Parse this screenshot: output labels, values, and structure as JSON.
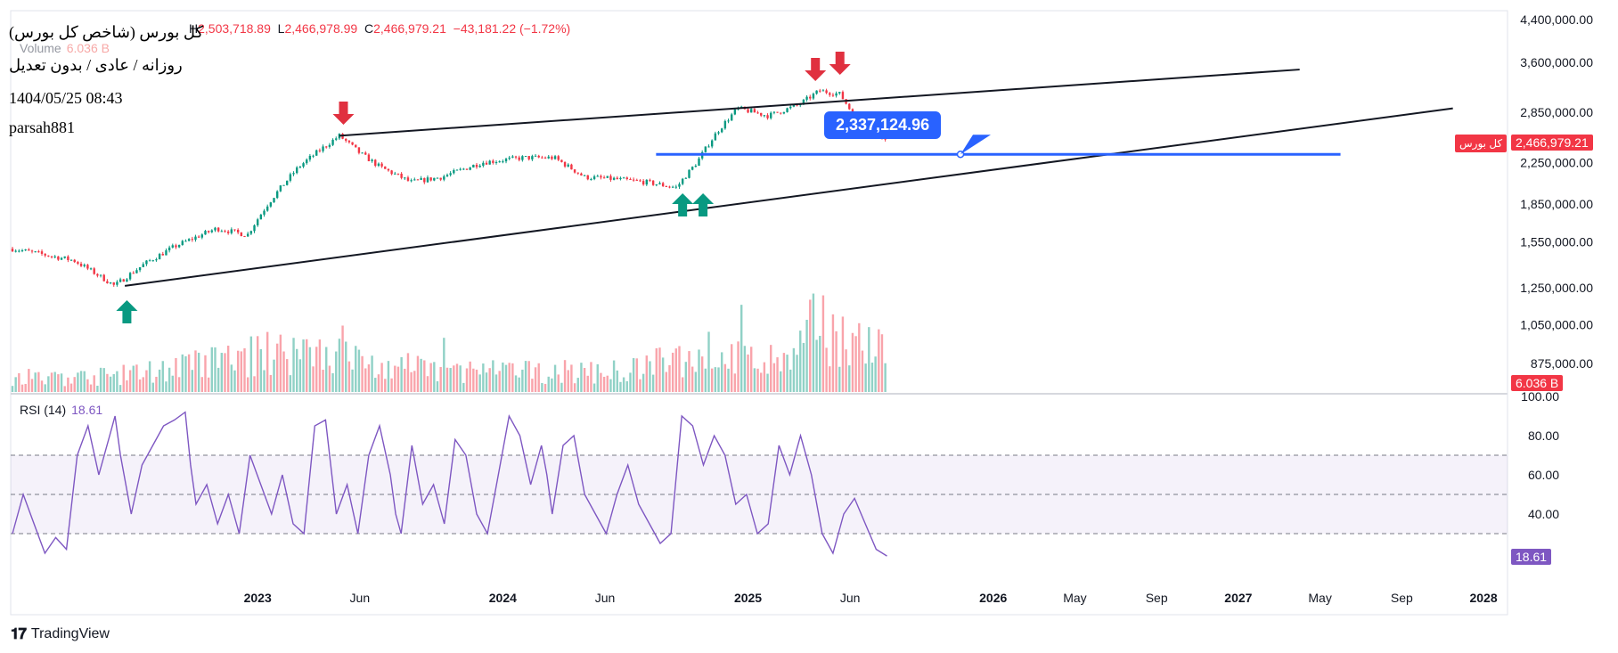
{
  "header": {
    "title": "کل بورس (شاخص کل بورس)",
    "timeframe": "روزانه / عادی / بدون تعدیل",
    "datetime": "1404/05/25 08:43",
    "author": "parsah881"
  },
  "ohlc": {
    "h_label": "H",
    "h_value": "2,503,718.89",
    "l_label": "L",
    "l_value": "2,466,978.99",
    "c_label": "C",
    "c_value": "2,466,979.21",
    "change": "−43,181.22 (−1.72%)"
  },
  "volume_legend": {
    "label": "Volume",
    "value": "6.036 B"
  },
  "rsi_legend": {
    "label": "RSI (14)",
    "value": "18.61"
  },
  "price_badge": {
    "name": "کل بورس",
    "value": "2,466,979.21"
  },
  "volume_badge": "6.036 B",
  "rsi_badge": "18.61",
  "callout_value": "2,337,124.96",
  "branding": {
    "logo_mark": "𝟏𝟕",
    "logo_text": "TradingView"
  },
  "colors": {
    "up": "#089981",
    "down": "#f23645",
    "rsi": "#7e57c2",
    "trendline": "#2962ff",
    "arrow_up": "#089981",
    "arrow_down": "#e0303f"
  },
  "chart_data": [
    {
      "type": "candlestick",
      "title": "کل بورس (شاخص کل بورس)",
      "scale": "log",
      "y_ticks": [
        "4,400,000.00",
        "3,600,000.00",
        "2,850,000.00",
        "2,250,000.00",
        "1,850,000.00",
        "1,550,000.00",
        "1,250,000.00",
        "1,050,000.00",
        "875,000.00"
      ],
      "y_tick_values": [
        4400000,
        3600000,
        2850000,
        2250000,
        1850000,
        1550000,
        1250000,
        1050000,
        875000
      ],
      "x_ticks": [
        {
          "label": "2023",
          "year": true
        },
        {
          "label": "Jun",
          "year": false
        },
        {
          "label": "2024",
          "year": true
        },
        {
          "label": "Jun",
          "year": false
        },
        {
          "label": "2025",
          "year": true
        },
        {
          "label": "Jun",
          "year": false
        },
        {
          "label": "2026",
          "year": true
        },
        {
          "label": "May",
          "year": false
        },
        {
          "label": "Sep",
          "year": false
        },
        {
          "label": "2027",
          "year": true
        },
        {
          "label": "May",
          "year": false
        },
        {
          "label": "Sep",
          "year": false
        },
        {
          "label": "2028",
          "year": true
        }
      ],
      "x_tick_months": [
        12,
        17,
        24,
        29,
        36,
        41,
        48,
        52,
        56,
        60,
        64,
        68,
        72
      ],
      "price_path": [
        [
          0,
          1500000
        ],
        [
          3,
          1420000
        ],
        [
          5,
          1260000
        ],
        [
          6.5,
          1400000
        ],
        [
          8,
          1520000
        ],
        [
          10,
          1650000
        ],
        [
          11.5,
          1600000
        ],
        [
          12.5,
          1850000
        ],
        [
          14,
          2200000
        ],
        [
          16,
          2550000
        ],
        [
          17,
          2350000
        ],
        [
          18,
          2200000
        ],
        [
          19.5,
          2050000
        ],
        [
          21,
          2100000
        ],
        [
          23,
          2250000
        ],
        [
          25,
          2300000
        ],
        [
          26.5,
          2300000
        ],
        [
          28,
          2100000
        ],
        [
          29.5,
          2080000
        ],
        [
          31,
          2050000
        ],
        [
          32.5,
          2000000
        ],
        [
          33.5,
          2250000
        ],
        [
          34.5,
          2600000
        ],
        [
          35.5,
          2900000
        ],
        [
          37,
          2800000
        ],
        [
          38.5,
          2950000
        ],
        [
          39.5,
          3150000
        ],
        [
          40.5,
          3100000
        ],
        [
          41.3,
          2750000
        ],
        [
          42,
          2750000
        ],
        [
          42.8,
          2467000
        ]
      ],
      "volume_path": [
        [
          0,
          0.15
        ],
        [
          5,
          0.2
        ],
        [
          8,
          0.3
        ],
        [
          12,
          0.45
        ],
        [
          15,
          0.55
        ],
        [
          18,
          0.3
        ],
        [
          24,
          0.25
        ],
        [
          30,
          0.25
        ],
        [
          34,
          0.5
        ],
        [
          36,
          0.4
        ],
        [
          38,
          0.35
        ],
        [
          39.5,
          0.9
        ],
        [
          40.5,
          0.7
        ],
        [
          41.5,
          0.6
        ],
        [
          42.8,
          0.45
        ]
      ],
      "rsi_path": [
        [
          0,
          30
        ],
        [
          1,
          50
        ],
        [
          2,
          35
        ],
        [
          3,
          20
        ],
        [
          4,
          28
        ],
        [
          5,
          22
        ],
        [
          6,
          70
        ],
        [
          7,
          85
        ],
        [
          8,
          60
        ],
        [
          9,
          80
        ],
        [
          9.5,
          90
        ],
        [
          10,
          70
        ],
        [
          11,
          40
        ],
        [
          12,
          65
        ],
        [
          13,
          75
        ],
        [
          14,
          85
        ],
        [
          15,
          88
        ],
        [
          16,
          92
        ],
        [
          16.5,
          65
        ],
        [
          17,
          45
        ],
        [
          18,
          55
        ],
        [
          19,
          35
        ],
        [
          20,
          50
        ],
        [
          21,
          30
        ],
        [
          22,
          70
        ],
        [
          23,
          55
        ],
        [
          24,
          40
        ],
        [
          25,
          60
        ],
        [
          26,
          35
        ],
        [
          27,
          30
        ],
        [
          28,
          85
        ],
        [
          29,
          88
        ],
        [
          30,
          40
        ],
        [
          31,
          55
        ],
        [
          32,
          30
        ],
        [
          33,
          70
        ],
        [
          34,
          85
        ],
        [
          35,
          60
        ],
        [
          35.5,
          40
        ],
        [
          36,
          30
        ],
        [
          37,
          75
        ],
        [
          38,
          45
        ],
        [
          39,
          55
        ],
        [
          40,
          35
        ],
        [
          41,
          78
        ],
        [
          42,
          70
        ],
        [
          43,
          40
        ],
        [
          44,
          30
        ],
        [
          45,
          60
        ],
        [
          46,
          90
        ],
        [
          47,
          80
        ],
        [
          48,
          55
        ],
        [
          49,
          75
        ],
        [
          49.5,
          60
        ],
        [
          50,
          40
        ],
        [
          51,
          75
        ],
        [
          52,
          80
        ],
        [
          53,
          50
        ],
        [
          54,
          40
        ],
        [
          55,
          30
        ],
        [
          56,
          50
        ],
        [
          57,
          65
        ],
        [
          58,
          45
        ],
        [
          59,
          35
        ],
        [
          60,
          25
        ],
        [
          61,
          30
        ],
        [
          62,
          90
        ],
        [
          63,
          85
        ],
        [
          64,
          65
        ],
        [
          65,
          80
        ],
        [
          66,
          70
        ],
        [
          67,
          45
        ],
        [
          68,
          50
        ],
        [
          69,
          30
        ],
        [
          70,
          35
        ],
        [
          71,
          75
        ],
        [
          72,
          60
        ],
        [
          73,
          80
        ],
        [
          74,
          60
        ],
        [
          75,
          30
        ],
        [
          76,
          20
        ],
        [
          77,
          40
        ],
        [
          78,
          48
        ],
        [
          79,
          35
        ],
        [
          80,
          22
        ],
        [
          81,
          18.61
        ]
      ],
      "rsi_ticks": [
        "100.00",
        "80.00",
        "60.00",
        "40.00"
      ],
      "rsi_levels": [
        70,
        50,
        30
      ],
      "annotations": {
        "resistance_line": {
          "from": [
            16,
            2550000
          ],
          "to": [
            63,
            3480000
          ]
        },
        "support_line": {
          "from": [
            5.5,
            1260000
          ],
          "to": [
            70.5,
            2900000
          ]
        },
        "horizontal_level": {
          "value": 2337124.96,
          "from_month": 31.5,
          "to_month": 65
        }
      }
    }
  ]
}
